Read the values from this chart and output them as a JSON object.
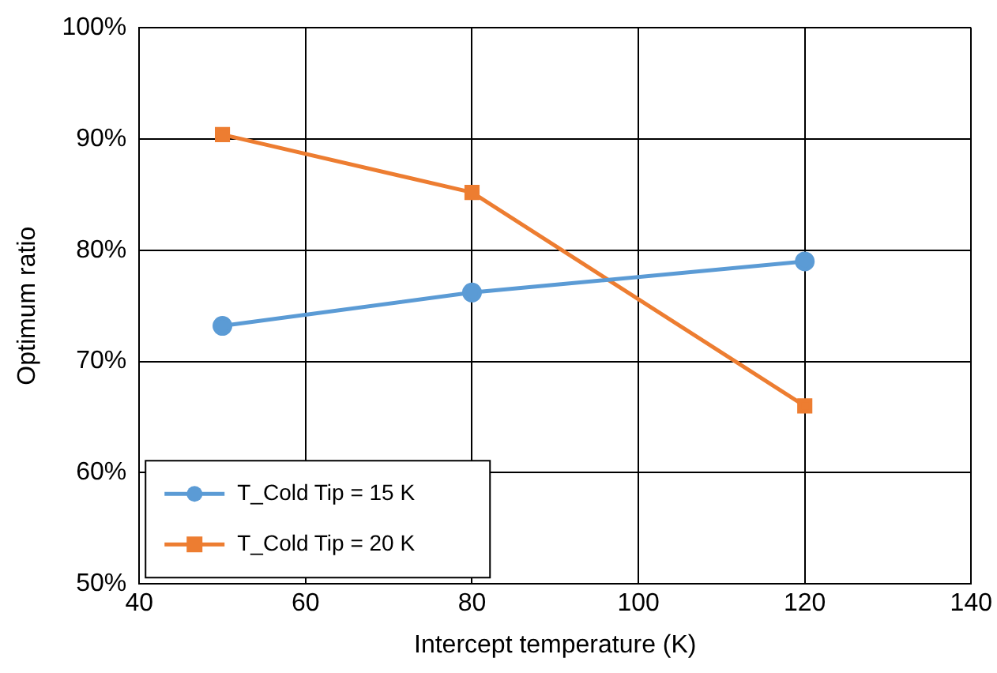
{
  "chart_data": {
    "type": "line",
    "xlabel": "Intercept temperature (K)",
    "ylabel": "Optimum ratio",
    "x": [
      50,
      80,
      120
    ],
    "series": [
      {
        "name": "T_Cold Tip = 15 K",
        "color": "#5b9bd5",
        "marker": "circle",
        "values": [
          73.2,
          76.2,
          79.0
        ]
      },
      {
        "name": "T_Cold Tip = 20 K",
        "color": "#ed7d31",
        "marker": "square",
        "values": [
          90.4,
          85.2,
          66.0
        ]
      }
    ],
    "xlim": [
      40,
      140
    ],
    "xticks": [
      40,
      60,
      80,
      100,
      120,
      140
    ],
    "ylim": [
      50,
      100
    ],
    "yticks": [
      {
        "value": 50,
        "label": "50%"
      },
      {
        "value": 60,
        "label": "60%"
      },
      {
        "value": 70,
        "label": "70%"
      },
      {
        "value": 80,
        "label": "80%"
      },
      {
        "value": 90,
        "label": "90%"
      },
      {
        "value": 100,
        "label": "100%"
      }
    ],
    "grid": true,
    "legend": "bottom left"
  }
}
